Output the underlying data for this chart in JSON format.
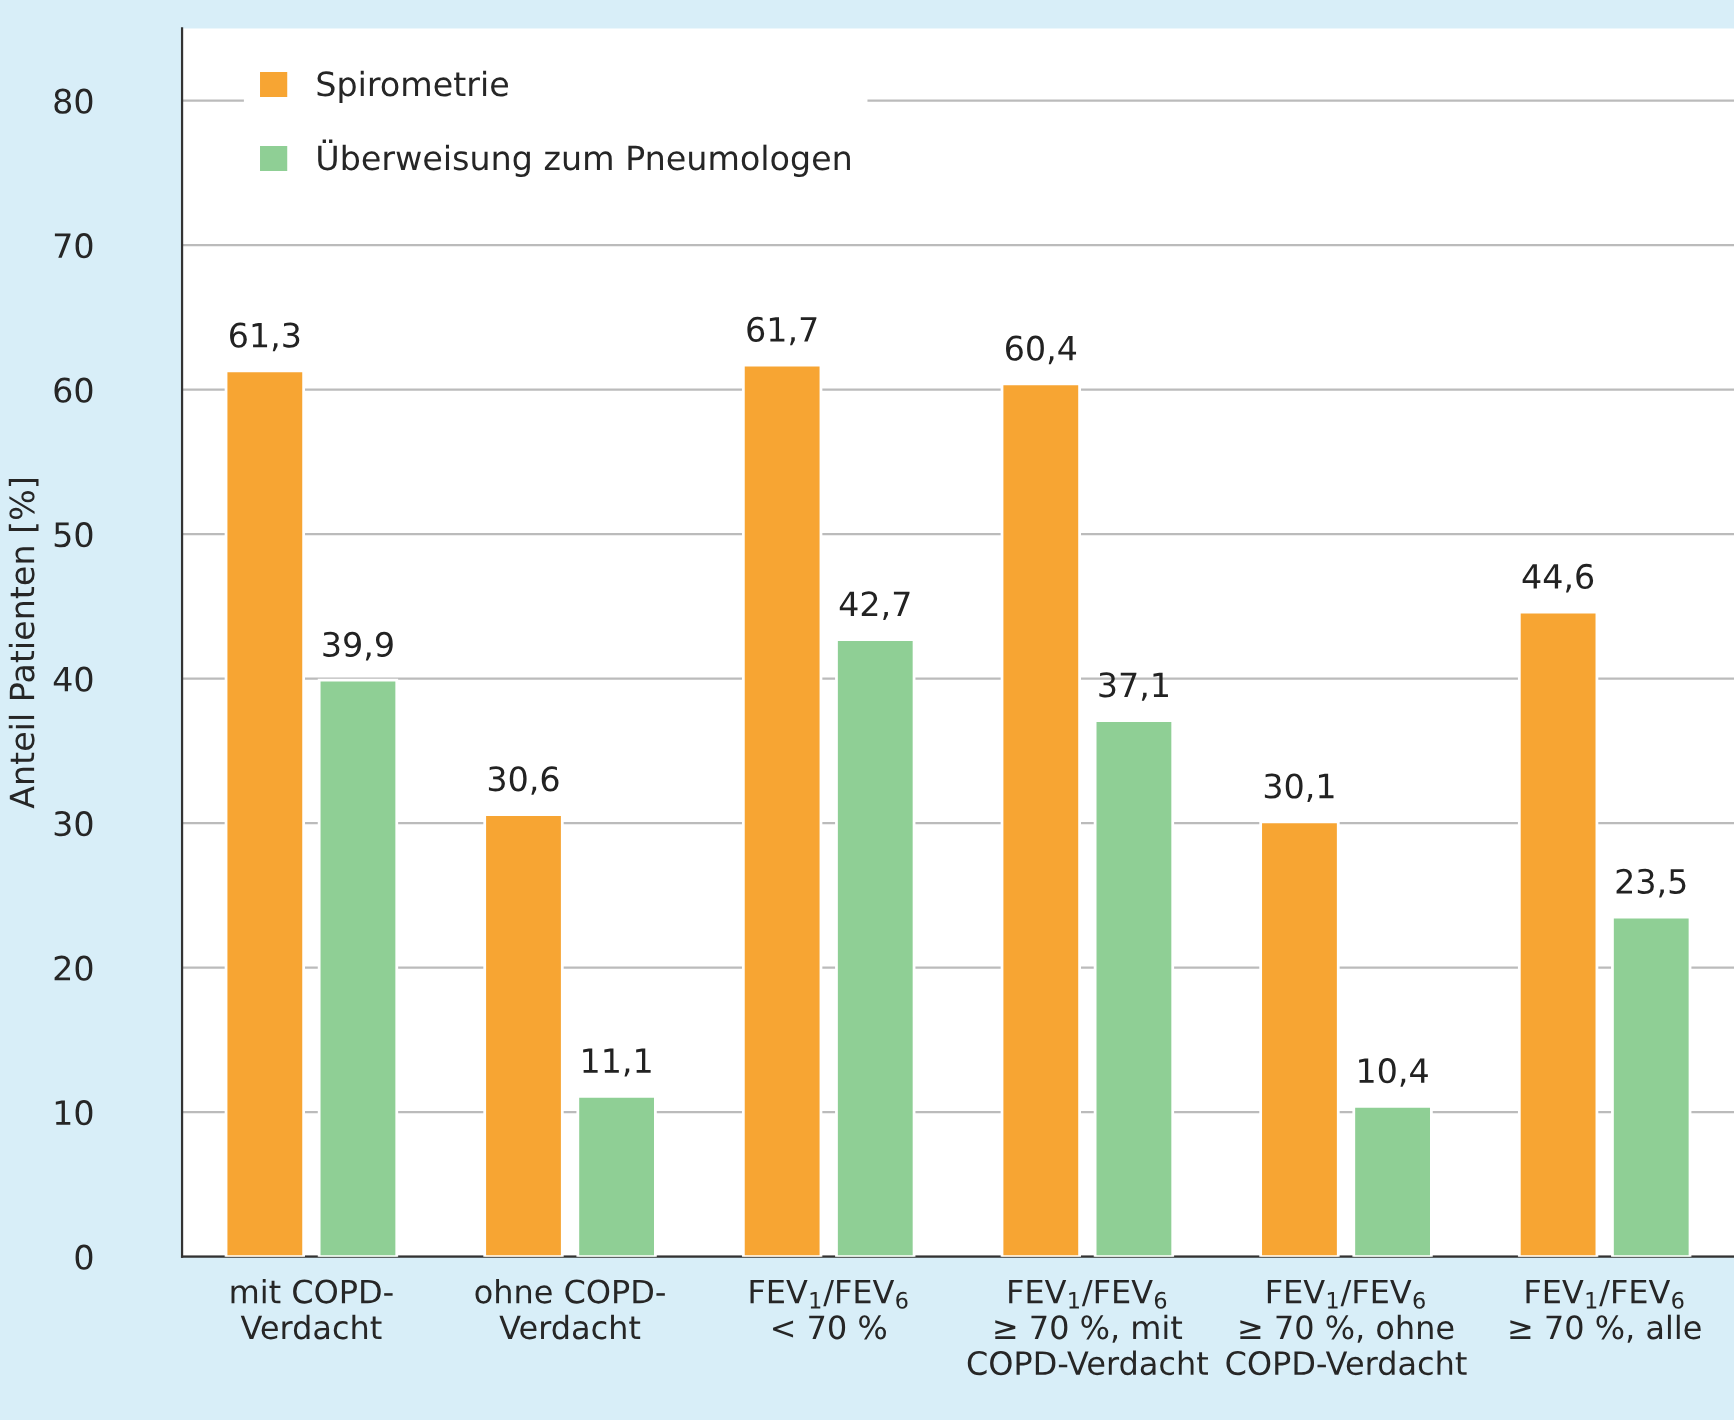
{
  "chart_data": {
    "type": "bar",
    "ylabel": "Anteil Patienten [%]",
    "categories": [
      "mit COPD-\nVerdacht",
      "ohne COPD-\nVerdacht",
      "FEV$_{1}$/FEV$_{6}$\n< 70 %",
      "FEV$_{1}$/FEV$_{6}$\n≥ 70 %, mit\nCOPD-Verdacht",
      "FEV$_{1}$/FEV$_{6}$\n≥ 70 %, ohne\nCOPD-Verdacht",
      "FEV$_{1}$/FEV$_{6}$\n≥ 70 %, alle"
    ],
    "series": [
      {
        "name": "Spirometrie",
        "color": "#f7a533",
        "values": [
          61.3,
          30.6,
          61.7,
          60.4,
          30.1,
          44.6
        ]
      },
      {
        "name": "Überweisung zum Pneumologen",
        "color": "#8fcf95",
        "values": [
          39.9,
          11.1,
          42.7,
          37.1,
          10.4,
          23.5
        ]
      }
    ],
    "value_labels": [
      [
        "61,3",
        "30,6",
        "61,7",
        "60,4",
        "30,1",
        "44,6"
      ],
      [
        "39,9",
        "11,1",
        "42,7",
        "37,1",
        "10,4",
        "23,5"
      ]
    ],
    "ylim": [
      0,
      85
    ],
    "yticks": [
      0,
      10,
      20,
      30,
      40,
      50,
      60,
      70,
      80
    ],
    "grid": "y",
    "legend": "top left"
  }
}
